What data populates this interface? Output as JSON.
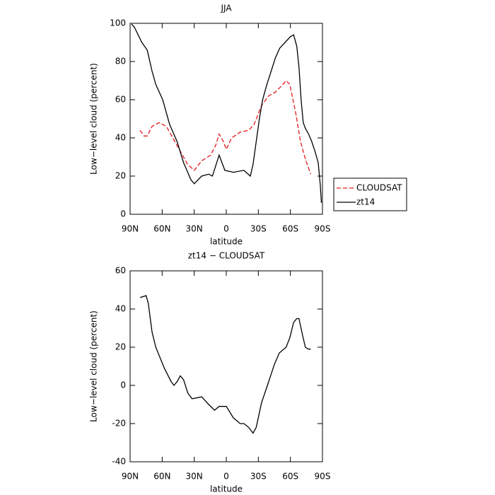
{
  "chart_data": [
    {
      "type": "line",
      "title": "JJA",
      "xlabel": "latitude",
      "ylabel": "Low−level cloud (percent)",
      "xlim": [
        90,
        -90
      ],
      "xticks": [
        {
          "value": 90,
          "label": "90N"
        },
        {
          "value": 60,
          "label": "60N"
        },
        {
          "value": 30,
          "label": "30N"
        },
        0,
        {
          "value": -30,
          "label": "30S"
        },
        {
          "value": -60,
          "label": "60S"
        },
        {
          "value": -90,
          "label": "90S"
        }
      ],
      "ylim": [
        0,
        100
      ],
      "yticks": [
        0,
        20,
        40,
        60,
        80,
        100
      ],
      "legend": "outside-right",
      "series": [
        {
          "name": "CLOUDSAT",
          "color": "#e41a1c",
          "linestyle": "dashed",
          "x": [
            80.7,
            77,
            74,
            69.5,
            63,
            56,
            50,
            43,
            36,
            30,
            23,
            14.6,
            10,
            6.7,
            2.6,
            0,
            -5,
            -13,
            -21,
            -26,
            -33,
            -39.7,
            -46,
            -53,
            -56,
            -59.5,
            -65,
            -69.5,
            -74,
            -79
          ],
          "values": [
            44,
            41,
            41,
            46,
            48,
            46,
            40,
            33,
            26,
            23,
            28,
            31,
            36,
            42,
            38,
            34,
            40,
            43,
            44,
            47,
            57,
            62,
            64,
            68,
            70,
            68,
            53,
            38,
            29,
            21
          ]
        },
        {
          "name": "zt14",
          "color": "#000000",
          "linestyle": "solid",
          "x": [
            88.7,
            86,
            79,
            74,
            69.5,
            66,
            59.5,
            53,
            46,
            40,
            33,
            30,
            23,
            16.5,
            13,
            6.7,
            1.3,
            -6.6,
            -16.5,
            -22.5,
            -25,
            -28,
            -31,
            -34,
            -38,
            -42,
            -46,
            -50,
            -55,
            -60,
            -63,
            -66,
            -68,
            -70,
            -72,
            -74,
            -77,
            -80,
            -83,
            -86,
            -88,
            -89
          ],
          "values": [
            99.6,
            98,
            90,
            86,
            75,
            68,
            60,
            47,
            38,
            27,
            18,
            16,
            20,
            21,
            20,
            31,
            23,
            22,
            23,
            20,
            26,
            38,
            50,
            60,
            68,
            75,
            82,
            87,
            90,
            93,
            94,
            88,
            77,
            60,
            48,
            45,
            42,
            38,
            33,
            27,
            15,
            6
          ]
        }
      ]
    },
    {
      "type": "line",
      "title": "zt14 − CLOUDSAT",
      "xlabel": "latitude",
      "ylabel": "Low−level cloud (percent)",
      "xlim": [
        90,
        -90
      ],
      "xticks": [
        {
          "value": 90,
          "label": "90N"
        },
        {
          "value": 60,
          "label": "60N"
        },
        {
          "value": 30,
          "label": "30N"
        },
        0,
        {
          "value": -30,
          "label": "30S"
        },
        {
          "value": -60,
          "label": "60S"
        },
        {
          "value": -90,
          "label": "90S"
        }
      ],
      "ylim": [
        -40,
        60
      ],
      "yticks": [
        -40,
        -20,
        0,
        20,
        40,
        60
      ],
      "series": [
        {
          "color": "#000000",
          "linestyle": "solid",
          "x": [
            80.7,
            75,
            73,
            69.5,
            66,
            58,
            51.6,
            49,
            46,
            43,
            40,
            36,
            32,
            23,
            16.5,
            11,
            6.7,
            0,
            -6.6,
            -13,
            -16.5,
            -21,
            -25,
            -28,
            -33,
            -38.5,
            -45,
            -49.6,
            -56,
            -59.5,
            -63,
            -66,
            -68,
            -71.5,
            -74,
            -76.8,
            -79
          ],
          "values": [
            46,
            47,
            43,
            28,
            20,
            9,
            2,
            0,
            2,
            5,
            3,
            -4,
            -7,
            -6,
            -10,
            -13,
            -11,
            -11,
            -17,
            -20,
            -20,
            -22,
            -25,
            -22,
            -9,
            0,
            11,
            17,
            20,
            25,
            33,
            35,
            35,
            26,
            20,
            19,
            19
          ]
        }
      ]
    }
  ]
}
